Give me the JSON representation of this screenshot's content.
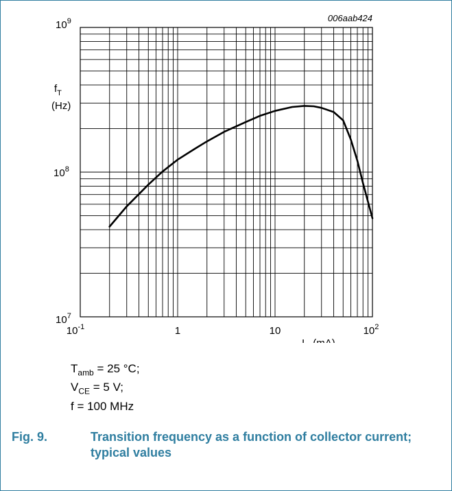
{
  "chart_data": {
    "type": "line",
    "code": "006aab424",
    "x_scale": "log",
    "y_scale": "log",
    "xlim": [
      0.1,
      100
    ],
    "ylim": [
      10000000,
      1000000000
    ],
    "grid": true,
    "xlabel": {
      "sym": "I",
      "sub": "C",
      "unit": "(mA)"
    },
    "ylabel": {
      "sym": "f",
      "sub": "T",
      "unit": "(Hz)"
    },
    "x_ticks": [
      {
        "value": 0.1,
        "base": "10",
        "exp": "-1"
      },
      {
        "value": 1,
        "base": "1",
        "exp": ""
      },
      {
        "value": 10,
        "base": "10",
        "exp": ""
      },
      {
        "value": 100,
        "base": "10",
        "exp": "2"
      }
    ],
    "y_ticks": [
      {
        "value": 10000000,
        "base": "10",
        "exp": "7"
      },
      {
        "value": 100000000,
        "base": "10",
        "exp": "8"
      },
      {
        "value": 1000000000,
        "base": "10",
        "exp": "9"
      }
    ],
    "series": [
      {
        "x": [
          0.2,
          0.3,
          0.5,
          0.7,
          1,
          1.5,
          2,
          3,
          5,
          7,
          10,
          15,
          20,
          25,
          30,
          40,
          50,
          60,
          70,
          80,
          100
        ],
        "y": [
          42000000,
          58000000,
          82000000,
          101000000,
          122000000,
          145000000,
          163000000,
          190000000,
          222000000,
          245000000,
          265000000,
          282000000,
          287000000,
          285000000,
          278000000,
          260000000,
          228000000,
          168000000,
          120000000,
          84000000,
          48000000
        ]
      }
    ]
  },
  "conditions": {
    "tamb": {
      "sym": "T",
      "sub": "amb",
      "rest": " = 25 °C;"
    },
    "vce": {
      "sym": "V",
      "sub": "CE",
      "rest": " = 5 V;"
    },
    "freq": "f = 100 MHz"
  },
  "caption": {
    "number": "Fig. 9.",
    "text": "Transition frequency as a function of collector current; typical values"
  },
  "colors": {
    "accent": "#2f7ea0",
    "line": "#000000"
  }
}
